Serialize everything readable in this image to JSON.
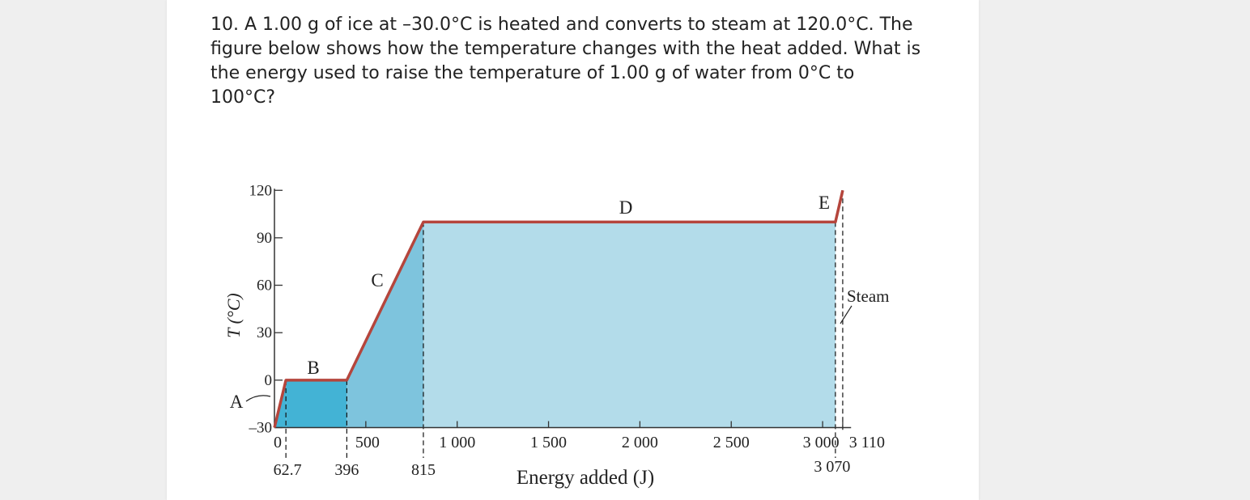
{
  "question": {
    "text": "10. A 1.00 g of ice at –30.0°C is heated and converts to steam at 120.0°C. The figure below shows how the temperature changes with the heat added. What is the energy used to raise the temperature of 1.00 g of water from 0°C to 100°C?"
  },
  "colors": {
    "line": "#b5453c",
    "region_A": "#42b4d6",
    "region_B": "#43b3d5",
    "region_C": "#7ec4dd",
    "region_D": "#b3dcea",
    "axis": "#333333"
  },
  "chart_data": {
    "type": "line",
    "xlabel": "Energy added (J)",
    "ylabel": "T (°C)",
    "xlim": [
      0,
      3200
    ],
    "ylim": [
      -30,
      120
    ],
    "x_ticks": [
      0,
      500,
      1000,
      1500,
      2000,
      2500,
      3000,
      3110
    ],
    "x_tick_labels": [
      "0",
      "500",
      "1 000",
      "1 500",
      "2 000",
      "2 500",
      "3 000",
      "3 110"
    ],
    "y_ticks": [
      -30,
      0,
      30,
      60,
      90,
      120
    ],
    "y_tick_labels": [
      "–30",
      "0",
      "30",
      "60",
      "90",
      "120"
    ],
    "marked_x": [
      62.7,
      396,
      815,
      3070
    ],
    "marked_x_labels": [
      "62.7",
      "396",
      "815",
      "3 070"
    ],
    "series": [
      {
        "x": [
          0,
          62.7,
          396,
          815,
          3070,
          3110
        ],
        "y": [
          -30,
          0,
          0,
          100,
          100,
          120
        ]
      }
    ],
    "segments": [
      {
        "label": "A",
        "x": [
          0,
          62.7
        ]
      },
      {
        "label": "B",
        "x": [
          62.7,
          396
        ]
      },
      {
        "label": "C",
        "x": [
          396,
          815
        ]
      },
      {
        "label": "D",
        "x": [
          815,
          3070
        ]
      },
      {
        "label": "E",
        "x": [
          3070,
          3110
        ]
      }
    ],
    "annotations": [
      {
        "text": "Steam"
      }
    ]
  }
}
